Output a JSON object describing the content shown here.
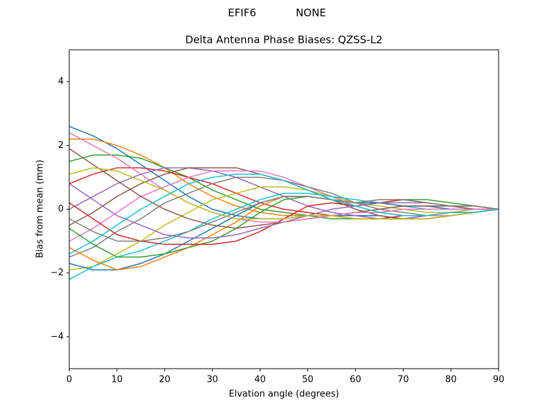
{
  "chart_data": {
    "type": "line",
    "suptitle": "EFIF6            NONE",
    "title": "Delta Antenna Phase Biases: QZSS-L2",
    "xlabel": "Elvation angle (degrees)",
    "ylabel": "Bias from mean (mm)",
    "x": [
      0,
      5,
      10,
      15,
      20,
      25,
      30,
      35,
      40,
      45,
      50,
      55,
      60,
      65,
      70,
      75,
      80,
      85,
      90
    ],
    "xlim": [
      0,
      90
    ],
    "xticks": [
      0,
      10,
      20,
      30,
      40,
      50,
      60,
      70,
      80,
      90
    ],
    "ylim": [
      -5,
      5
    ],
    "yticks": [
      {
        "value": -4,
        "label": "−4"
      },
      {
        "value": -2,
        "label": "−2"
      },
      0,
      2,
      4
    ],
    "grid": false,
    "series": [
      {
        "color": "#1f77b4",
        "values": [
          2.6,
          2.3,
          1.9,
          1.4,
          0.9,
          0.4,
          0.0,
          -0.2,
          -0.3,
          -0.3,
          -0.2,
          -0.2,
          -0.2,
          -0.2,
          -0.3,
          -0.3,
          -0.2,
          -0.1,
          0
        ]
      },
      {
        "color": "#ff7f0e",
        "values": [
          2.2,
          2.2,
          2.0,
          1.7,
          1.3,
          0.8,
          0.4,
          0.1,
          -0.1,
          -0.2,
          -0.2,
          -0.2,
          -0.3,
          -0.3,
          -0.3,
          -0.3,
          -0.2,
          -0.1,
          0
        ]
      },
      {
        "color": "#2ca02c",
        "values": [
          1.5,
          1.7,
          1.7,
          1.6,
          1.3,
          1.0,
          0.6,
          0.3,
          0.0,
          -0.1,
          -0.2,
          -0.3,
          -0.3,
          -0.3,
          -0.3,
          -0.2,
          -0.2,
          -0.1,
          0
        ]
      },
      {
        "color": "#d62728",
        "values": [
          0.8,
          1.1,
          1.3,
          1.3,
          1.2,
          1.0,
          0.8,
          0.5,
          0.2,
          0.0,
          -0.1,
          -0.2,
          -0.3,
          -0.3,
          -0.2,
          -0.2,
          -0.1,
          -0.1,
          0
        ]
      },
      {
        "color": "#9467bd",
        "values": [
          0.0,
          0.4,
          0.8,
          1.1,
          1.3,
          1.3,
          1.2,
          1.0,
          0.7,
          0.4,
          0.1,
          -0.1,
          -0.2,
          -0.3,
          -0.3,
          -0.2,
          -0.2,
          -0.1,
          0
        ]
      },
      {
        "color": "#8c564b",
        "values": [
          -0.5,
          -0.1,
          0.4,
          0.8,
          1.1,
          1.3,
          1.3,
          1.3,
          1.1,
          0.9,
          0.6,
          0.3,
          0.0,
          -0.2,
          -0.3,
          -0.3,
          -0.2,
          -0.1,
          0
        ]
      },
      {
        "color": "#e377c2",
        "values": [
          -1.0,
          -0.6,
          -0.1,
          0.4,
          0.7,
          1.0,
          1.2,
          1.2,
          1.2,
          1.0,
          0.7,
          0.4,
          0.1,
          -0.1,
          -0.2,
          -0.2,
          -0.2,
          -0.1,
          0
        ]
      },
      {
        "color": "#7f7f7f",
        "values": [
          -1.5,
          -1.2,
          -0.7,
          -0.3,
          0.2,
          0.5,
          0.8,
          1.0,
          1.0,
          0.9,
          0.7,
          0.5,
          0.2,
          0.0,
          -0.1,
          -0.2,
          -0.1,
          -0.1,
          0
        ]
      },
      {
        "color": "#bcbd22",
        "values": [
          -1.9,
          -1.8,
          -1.4,
          -1.0,
          -0.5,
          -0.1,
          0.3,
          0.5,
          0.7,
          0.7,
          0.6,
          0.4,
          0.2,
          0.1,
          0.0,
          -0.1,
          -0.1,
          0.0,
          0
        ]
      },
      {
        "color": "#17becf",
        "values": [
          -2.2,
          -1.8,
          -1.5,
          -1.3,
          -1.0,
          -0.7,
          -0.3,
          0.0,
          0.3,
          0.5,
          0.5,
          0.4,
          0.3,
          0.2,
          0.1,
          0.0,
          0.0,
          0.0,
          0
        ]
      },
      {
        "color": "#1f77b4",
        "values": [
          -1.7,
          -1.9,
          -1.9,
          -1.7,
          -1.4,
          -1.0,
          -0.6,
          -0.2,
          0.2,
          0.4,
          0.4,
          0.3,
          0.2,
          0.2,
          0.1,
          0.1,
          0.0,
          0.0,
          0
        ]
      },
      {
        "color": "#ff7f0e",
        "values": [
          -1.2,
          -1.6,
          -1.9,
          -1.8,
          -1.5,
          -1.2,
          -0.8,
          -0.4,
          0.1,
          0.4,
          0.4,
          0.3,
          0.2,
          0.3,
          0.3,
          0.2,
          0.1,
          0.1,
          0
        ]
      },
      {
        "color": "#2ca02c",
        "values": [
          -0.6,
          -1.1,
          -1.5,
          -1.5,
          -1.4,
          -1.2,
          -1.0,
          -0.6,
          -0.1,
          0.3,
          0.4,
          0.3,
          0.1,
          0.2,
          0.3,
          0.3,
          0.2,
          0.1,
          0
        ]
      },
      {
        "color": "#d62728",
        "values": [
          0.2,
          -0.3,
          -0.8,
          -1.0,
          -1.1,
          -1.1,
          -1.1,
          -1.0,
          -0.7,
          -0.3,
          0.1,
          0.2,
          0.1,
          0.2,
          0.3,
          0.2,
          0.1,
          0.1,
          0
        ]
      },
      {
        "color": "#9467bd",
        "values": [
          0.8,
          0.3,
          -0.2,
          -0.5,
          -0.8,
          -0.9,
          -0.9,
          -0.8,
          -0.6,
          -0.4,
          -0.2,
          0.0,
          0.1,
          0.2,
          0.2,
          0.2,
          0.1,
          0.0,
          0
        ]
      },
      {
        "color": "#8c564b",
        "values": [
          1.9,
          1.4,
          0.9,
          0.4,
          0.0,
          -0.3,
          -0.5,
          -0.6,
          -0.5,
          -0.4,
          -0.3,
          -0.2,
          -0.1,
          0.0,
          0.1,
          0.1,
          0.1,
          0.0,
          0
        ]
      },
      {
        "color": "#e377c2",
        "values": [
          2.4,
          2.0,
          1.6,
          1.1,
          0.6,
          0.2,
          -0.1,
          -0.3,
          -0.4,
          -0.4,
          -0.3,
          -0.2,
          -0.1,
          -0.1,
          0.0,
          0.0,
          0.0,
          0.0,
          0
        ]
      },
      {
        "color": "#7f7f7f",
        "values": [
          -0.3,
          -0.7,
          -1.0,
          -1.0,
          -0.9,
          -0.7,
          -0.4,
          -0.1,
          0.2,
          0.4,
          0.4,
          0.3,
          0.2,
          0.3,
          0.3,
          0.2,
          0.1,
          0.1,
          0
        ]
      },
      {
        "color": "#bcbd22",
        "values": [
          1.1,
          1.3,
          1.2,
          0.9,
          0.6,
          0.2,
          -0.1,
          -0.3,
          -0.3,
          -0.3,
          -0.2,
          -0.2,
          -0.3,
          -0.3,
          -0.3,
          -0.3,
          -0.2,
          -0.1,
          0
        ]
      },
      {
        "color": "#17becf",
        "values": [
          -1.4,
          -1.0,
          -0.5,
          0.0,
          0.4,
          0.8,
          1.0,
          1.1,
          1.1,
          0.9,
          0.6,
          0.3,
          0.1,
          -0.1,
          -0.2,
          -0.2,
          -0.1,
          -0.1,
          0
        ]
      }
    ]
  }
}
